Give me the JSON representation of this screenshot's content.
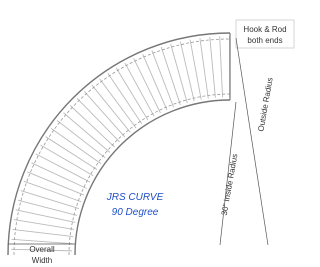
{
  "callouts": {
    "hook_rod": {
      "line1": "Hook & Rod",
      "line2": "both ends"
    },
    "outside_radius": "Outside Radius",
    "inside_radius": "30\" Inside Radius",
    "overall_width": {
      "line1": "Overall",
      "line2": "Width"
    }
  },
  "title": {
    "line1": "JRS CURVE",
    "line2": "90 Degree"
  }
}
